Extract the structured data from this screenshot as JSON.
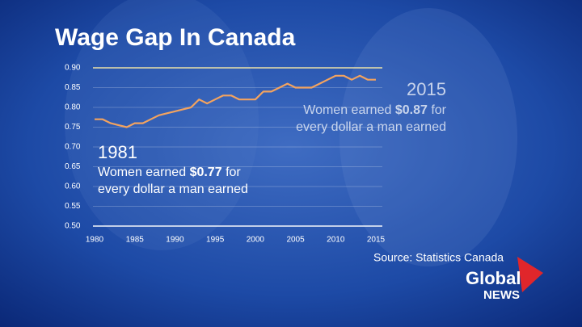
{
  "chart_data": {
    "type": "line",
    "title": "Wage Gap In Canada",
    "x": [
      1980,
      1981,
      1982,
      1983,
      1984,
      1985,
      1986,
      1987,
      1988,
      1989,
      1990,
      1991,
      1992,
      1993,
      1994,
      1995,
      1996,
      1997,
      1998,
      1999,
      2000,
      2001,
      2002,
      2003,
      2004,
      2005,
      2006,
      2007,
      2008,
      2009,
      2010,
      2011,
      2012,
      2013,
      2014,
      2015
    ],
    "values": [
      0.77,
      0.77,
      0.76,
      0.755,
      0.75,
      0.76,
      0.76,
      0.77,
      0.78,
      0.785,
      0.79,
      0.795,
      0.8,
      0.82,
      0.81,
      0.82,
      0.83,
      0.83,
      0.82,
      0.82,
      0.82,
      0.84,
      0.84,
      0.85,
      0.86,
      0.85,
      0.85,
      0.85,
      0.86,
      0.87,
      0.88,
      0.88,
      0.87,
      0.88,
      0.87,
      0.87
    ],
    "color": "#f3a35f",
    "xlim": [
      1980,
      2015
    ],
    "xticks": [
      1980,
      1985,
      1990,
      1995,
      2000,
      2005,
      2010,
      2015
    ],
    "ylim": [
      0.5,
      0.9
    ],
    "yticks": [
      {
        "value": 0.5,
        "label": "0.50"
      },
      0.55,
      {
        "value": 0.6,
        "label": "0.60"
      },
      0.65,
      {
        "value": 0.7,
        "label": "0.70"
      },
      0.75,
      {
        "value": 0.8,
        "label": "0.80"
      },
      0.85,
      {
        "value": 0.9,
        "label": "0.90"
      }
    ],
    "grid": true,
    "annotations": [
      {
        "year": "1981",
        "line1_start": "Women earned",
        "amount": "$0.77",
        "line1_end": "for",
        "line2": "every dollar a man earned"
      },
      {
        "year": "2015",
        "line1_start": "Women earned",
        "amount": "$0.87",
        "line1_end": "for",
        "line2": "every dollar a man earned"
      }
    ],
    "source": "Source: Statistics Canada"
  },
  "logo": {
    "top": "Global",
    "bottom": "NEWS"
  }
}
